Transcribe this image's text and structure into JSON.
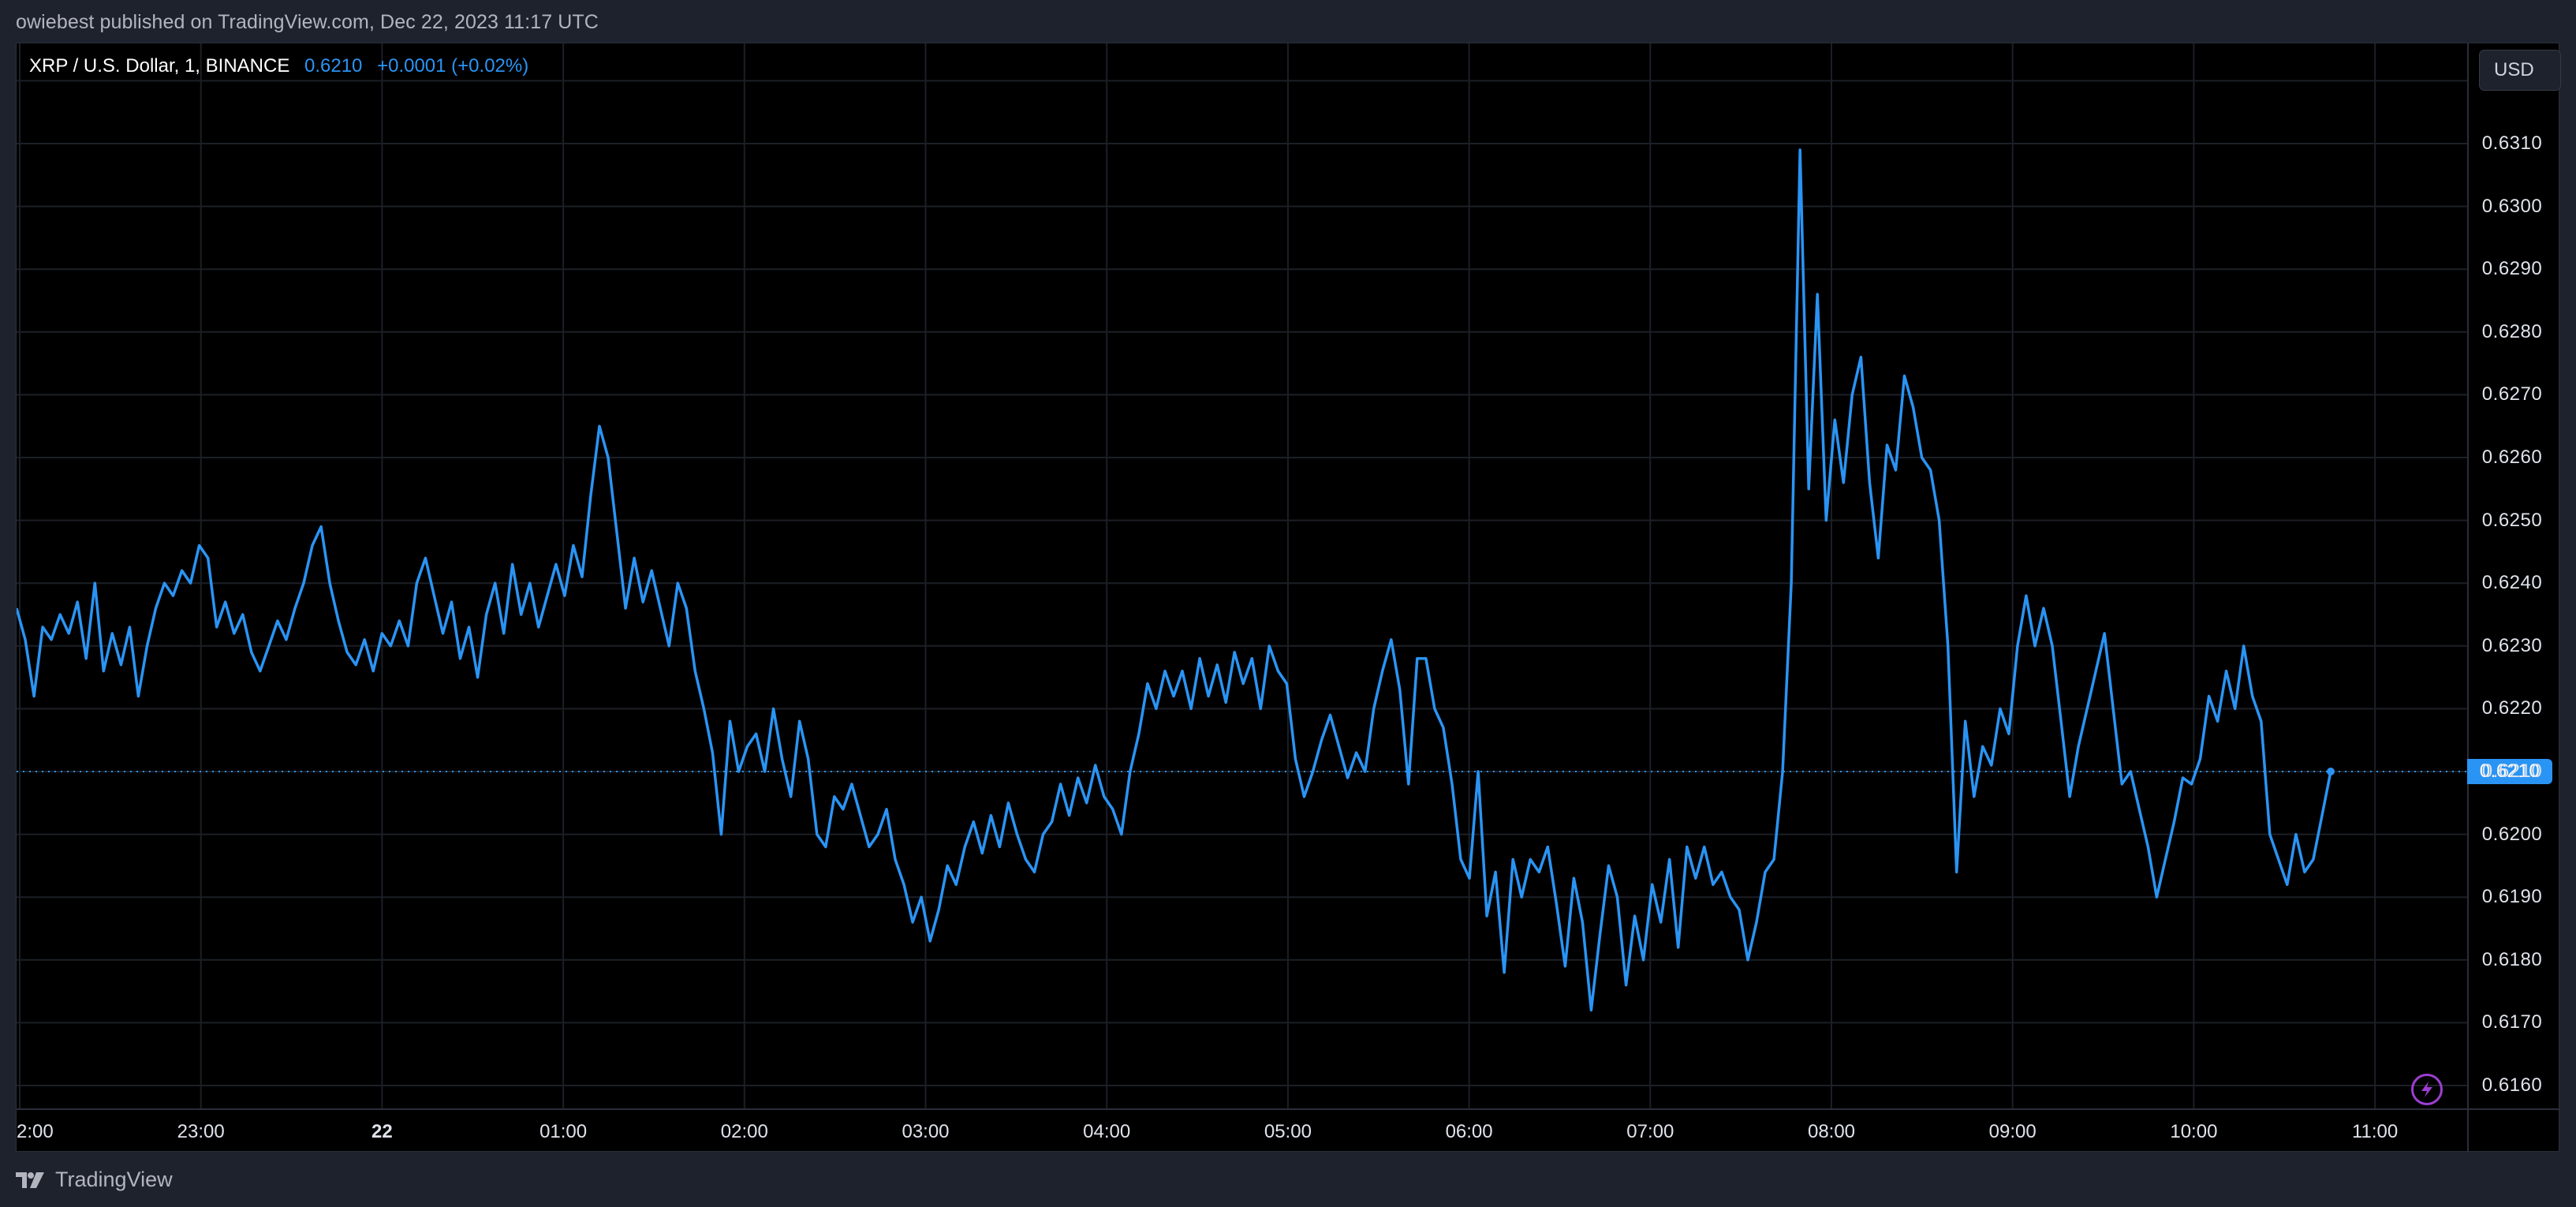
{
  "header": {
    "published_text": "owiebest published on TradingView.com, Dec 22, 2023 11:17 UTC"
  },
  "legend": {
    "symbol": "XRP / U.S. Dollar, 1, BINANCE",
    "last_price": "0.6210",
    "change": "+0.0001 (+0.02%)"
  },
  "price_axis": {
    "currency_button": "USD",
    "last_price_tag": "0.6210"
  },
  "footer": {
    "brand": "TradingView"
  },
  "colors": {
    "line": "#2a94f4",
    "background": "#000000",
    "frame": "#1e222d",
    "grid": "#1c1f26",
    "bolt_icon": "#9c3fd0"
  },
  "chart_data": {
    "type": "line",
    "title": "XRP / U.S. Dollar, 1, BINANCE",
    "xlabel": "",
    "ylabel": "USD",
    "ylim": [
      0.61555,
      0.63185
    ],
    "grid": true,
    "legend_position": "top-left",
    "last_value": 0.621,
    "y_ticks": [
      "0.6310",
      "0.6300",
      "0.6290",
      "0.6280",
      "0.6270",
      "0.6260",
      "0.6250",
      "0.6240",
      "0.6230",
      "0.6220",
      "0.6210",
      "0.6200",
      "0.6190",
      "0.6180",
      "0.6170",
      "0.6160"
    ],
    "x_ticks": [
      "2:00",
      "23:00",
      "22",
      "01:00",
      "02:00",
      "03:00",
      "04:00",
      "05:00",
      "06:00",
      "07:00",
      "08:00",
      "09:00",
      "10:00",
      "11:00"
    ],
    "x_start": "21 Dec 21:59",
    "x_end": "22 Dec 11:17",
    "x_step_minutes": 5,
    "series": [
      {
        "name": "XRP/USD close",
        "values": [
          0.6236,
          0.6231,
          0.6222,
          0.6233,
          0.6231,
          0.6235,
          0.6232,
          0.6237,
          0.6228,
          0.624,
          0.6226,
          0.6232,
          0.6227,
          0.6233,
          0.6222,
          0.623,
          0.6236,
          0.624,
          0.6238,
          0.6242,
          0.624,
          0.6246,
          0.6244,
          0.6233,
          0.6237,
          0.6232,
          0.6235,
          0.6229,
          0.6226,
          0.623,
          0.6234,
          0.6231,
          0.6236,
          0.624,
          0.6246,
          0.6249,
          0.624,
          0.6234,
          0.6229,
          0.6227,
          0.6231,
          0.6226,
          0.6232,
          0.623,
          0.6234,
          0.623,
          0.624,
          0.6244,
          0.6238,
          0.6232,
          0.6237,
          0.6228,
          0.6233,
          0.6225,
          0.6235,
          0.624,
          0.6232,
          0.6243,
          0.6235,
          0.624,
          0.6233,
          0.6238,
          0.6243,
          0.6238,
          0.6246,
          0.6241,
          0.6254,
          0.6265,
          0.626,
          0.6248,
          0.6236,
          0.6244,
          0.6237,
          0.6242,
          0.6236,
          0.623,
          0.624,
          0.6236,
          0.6226,
          0.622,
          0.6213,
          0.62,
          0.6218,
          0.621,
          0.6214,
          0.6216,
          0.621,
          0.622,
          0.6212,
          0.6206,
          0.6218,
          0.6212,
          0.62,
          0.6198,
          0.6206,
          0.6204,
          0.6208,
          0.6203,
          0.6198,
          0.62,
          0.6204,
          0.6196,
          0.6192,
          0.6186,
          0.619,
          0.6183,
          0.6188,
          0.6195,
          0.6192,
          0.6198,
          0.6202,
          0.6197,
          0.6203,
          0.6198,
          0.6205,
          0.62,
          0.6196,
          0.6194,
          0.62,
          0.6202,
          0.6208,
          0.6203,
          0.6209,
          0.6205,
          0.6211,
          0.6206,
          0.6204,
          0.62,
          0.621,
          0.6216,
          0.6224,
          0.622,
          0.6226,
          0.6222,
          0.6226,
          0.622,
          0.6228,
          0.6222,
          0.6227,
          0.6221,
          0.6229,
          0.6224,
          0.6228,
          0.622,
          0.623,
          0.6226,
          0.6224,
          0.6212,
          0.6206,
          0.621,
          0.6215,
          0.6219,
          0.6214,
          0.6209,
          0.6213,
          0.621,
          0.622,
          0.6226,
          0.6231,
          0.6223,
          0.6208,
          0.6228,
          0.6228,
          0.622,
          0.6217,
          0.6208,
          0.6196,
          0.6193,
          0.621,
          0.6187,
          0.6194,
          0.6178,
          0.6196,
          0.619,
          0.6196,
          0.6194,
          0.6198,
          0.6189,
          0.6179,
          0.6193,
          0.6186,
          0.6172,
          0.6184,
          0.6195,
          0.619,
          0.6176,
          0.6187,
          0.618,
          0.6192,
          0.6186,
          0.6196,
          0.6182,
          0.6198,
          0.6193,
          0.6198,
          0.6192,
          0.6194,
          0.619,
          0.6188,
          0.618,
          0.6186,
          0.6194,
          0.6196,
          0.621,
          0.624,
          0.6309,
          0.6255,
          0.6286,
          0.625,
          0.6266,
          0.6256,
          0.627,
          0.6276,
          0.6256,
          0.6244,
          0.6262,
          0.6258,
          0.6273,
          0.6268,
          0.626,
          0.6258,
          0.625,
          0.623,
          0.6194,
          0.6218,
          0.6206,
          0.6214,
          0.6211,
          0.622,
          0.6216,
          0.623,
          0.6238,
          0.623,
          0.6236,
          0.623,
          0.6218,
          0.6206,
          0.6214,
          0.622,
          0.6226,
          0.6232,
          0.622,
          0.6208,
          0.621,
          0.6204,
          0.6198,
          0.619,
          0.6196,
          0.6202,
          0.6209,
          0.6208,
          0.6212,
          0.6222,
          0.6218,
          0.6226,
          0.622,
          0.623,
          0.6222,
          0.6218,
          0.62,
          0.6196,
          0.6192,
          0.62,
          0.6194,
          0.6196,
          0.6203,
          0.621
        ]
      }
    ]
  }
}
